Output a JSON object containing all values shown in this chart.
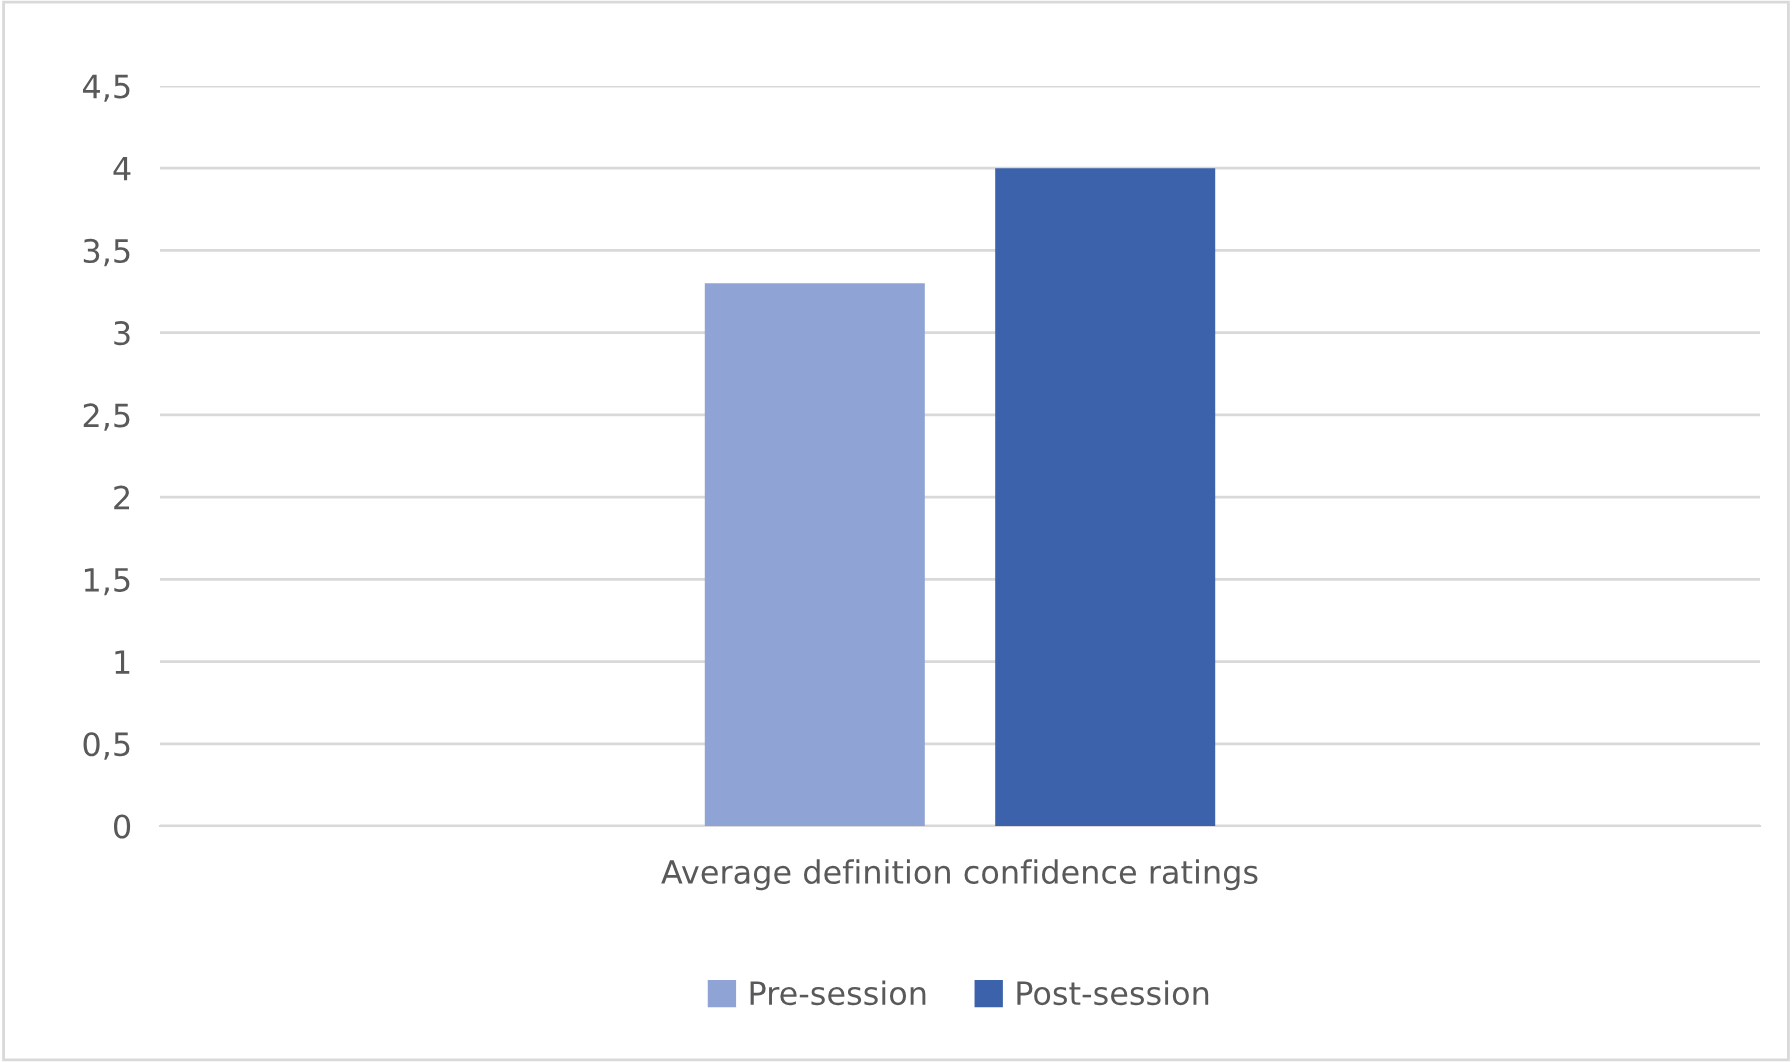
{
  "chart_data": {
    "type": "bar",
    "categories": [
      "Average definition confidence ratings"
    ],
    "series": [
      {
        "name": "Pre-session",
        "color": "#8fa3d4",
        "values": [
          3.3
        ]
      },
      {
        "name": "Post-session",
        "color": "#3b62aa",
        "values": [
          4
        ]
      }
    ],
    "ylim": [
      0,
      4.5
    ],
    "yticks": [
      0,
      {
        "value": 0.5,
        "label": "0,5"
      },
      1,
      {
        "value": 1.5,
        "label": "1,5"
      },
      2,
      {
        "value": 2.5,
        "label": "2,5"
      },
      3,
      {
        "value": 3.5,
        "label": "3,5"
      },
      4,
      {
        "value": 4.5,
        "label": "4,5"
      }
    ],
    "grid": "y",
    "legend": "bottom"
  }
}
